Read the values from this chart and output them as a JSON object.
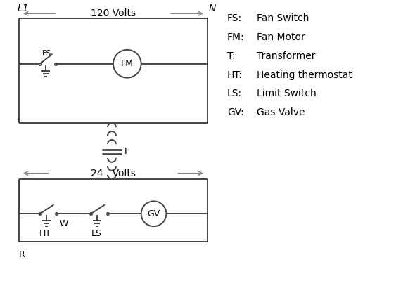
{
  "bg_color": "#ffffff",
  "line_color": "#444444",
  "text_color": "#000000",
  "legend_items": [
    [
      "FS:",
      "Fan Switch"
    ],
    [
      "FM:",
      "Fan Motor"
    ],
    [
      "T:",
      "Transformer"
    ],
    [
      "HT:",
      "Heating thermostat"
    ],
    [
      "LS:",
      "Limit Switch"
    ],
    [
      "GV:",
      "Gas Valve"
    ]
  ],
  "L1_label": "L1",
  "N_label": "N",
  "v120_label": "120 Volts",
  "v24_label": "24   Volts",
  "FS_label": "FS",
  "FM_label": "FM",
  "T_label": "T",
  "HT_label": "HT",
  "LS_label": "LS",
  "GV_label": "GV",
  "R_label": "R",
  "W_label": "W"
}
